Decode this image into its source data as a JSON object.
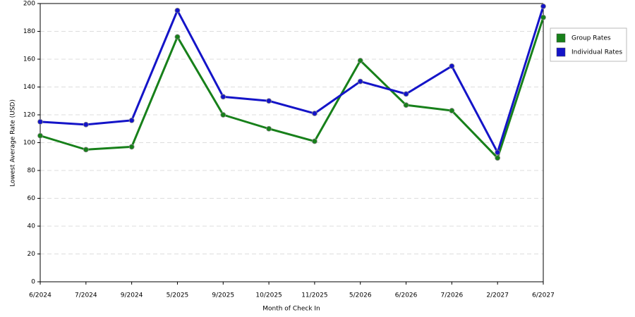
{
  "chart_data": {
    "type": "line",
    "x_label": "Month of Check In",
    "y_label": "Lowest Average Rate (USD)",
    "categories": [
      "6/2024",
      "7/2024",
      "9/2024",
      "5/2025",
      "9/2025",
      "10/2025",
      "11/2025",
      "5/2026",
      "6/2026",
      "7/2026",
      "2/2027",
      "6/2027"
    ],
    "series": [
      {
        "name": "Group Rates",
        "color": "#17801a",
        "values": [
          105,
          95,
          97,
          176,
          120,
          110,
          101,
          159,
          127,
          123,
          89,
          190
        ]
      },
      {
        "name": "Individual Rates",
        "color": "#1414c8",
        "values": [
          115,
          113,
          116,
          195,
          133,
          130,
          121,
          144,
          135,
          155,
          93,
          198
        ]
      }
    ],
    "ylim": [
      0,
      200
    ],
    "yticks": [
      0,
      20,
      40,
      60,
      80,
      100,
      120,
      140,
      160,
      180,
      200
    ],
    "grid": true,
    "legend": "right"
  }
}
